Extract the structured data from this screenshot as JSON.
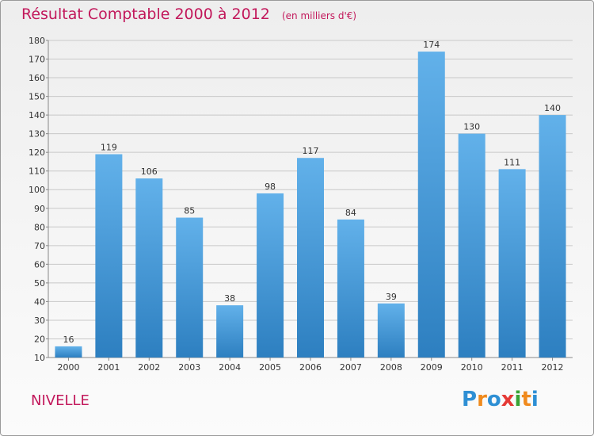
{
  "chart_data": {
    "type": "bar",
    "title": "Résultat Comptable 2000 à 2012",
    "subtitle": "(en milliers d'€)",
    "categories": [
      "2000",
      "2001",
      "2002",
      "2003",
      "2004",
      "2005",
      "2006",
      "2007",
      "2008",
      "2009",
      "2010",
      "2011",
      "2012"
    ],
    "values": [
      16,
      119,
      106,
      85,
      38,
      98,
      117,
      84,
      39,
      174,
      130,
      111,
      140
    ],
    "ylim": [
      10,
      180
    ],
    "yticks": [
      10,
      20,
      30,
      40,
      50,
      60,
      70,
      80,
      90,
      100,
      110,
      120,
      130,
      140,
      150,
      160,
      170,
      180
    ],
    "grid": true,
    "xlabel": "",
    "ylabel": ""
  },
  "colors": {
    "title": "#c2185b",
    "bar_top": "#62b1ea",
    "bar_bottom": "#2d7fc0",
    "grid": "#c8c8c8"
  },
  "commune": "NIVELLE",
  "logo": {
    "letters": [
      "P",
      "r",
      "o",
      "x",
      "i",
      "t",
      "i"
    ],
    "colors": [
      "#2e8fd4",
      "#f08a1d",
      "#2e8fd4",
      "#e53935",
      "#3aa335",
      "#f08a1d",
      "#2e8fd4"
    ]
  }
}
